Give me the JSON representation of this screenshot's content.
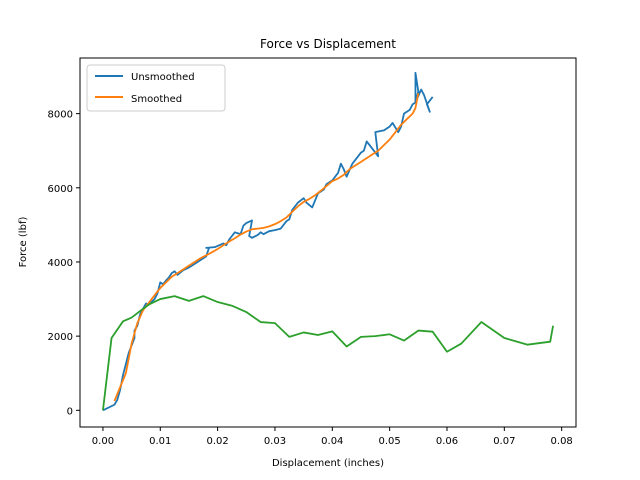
{
  "chart_data": {
    "type": "line",
    "title": "Force vs Displacement",
    "xlabel": "Displacement (inches)",
    "ylabel": "Force (lbf)",
    "xlim": [
      -0.004,
      0.0825
    ],
    "ylim": [
      -450,
      9500
    ],
    "xticks": [
      0.0,
      0.01,
      0.02,
      0.03,
      0.04,
      0.05,
      0.06,
      0.07,
      0.08
    ],
    "xtick_labels": [
      "0.00",
      "0.01",
      "0.02",
      "0.03",
      "0.04",
      "0.05",
      "0.06",
      "0.07",
      "0.08"
    ],
    "yticks": [
      0,
      2000,
      4000,
      6000,
      8000
    ],
    "ytick_labels": [
      "0",
      "2000",
      "4000",
      "6000",
      "8000"
    ],
    "grid": false,
    "legend_position": "top-left",
    "series": [
      {
        "name": "Unsmoothed",
        "color": "#1f77b4",
        "x": [
          0.0,
          0.002,
          0.0025,
          0.003,
          0.0035,
          0.004,
          0.0045,
          0.005,
          0.0055,
          0.0055,
          0.006,
          0.0065,
          0.0075,
          0.008,
          0.009,
          0.0095,
          0.01,
          0.0105,
          0.011,
          0.0115,
          0.012,
          0.0125,
          0.013,
          0.014,
          0.015,
          0.016,
          0.018,
          0.0185,
          0.018,
          0.0195,
          0.021,
          0.0215,
          0.022,
          0.0225,
          0.023,
          0.024,
          0.0245,
          0.025,
          0.026,
          0.0255,
          0.026,
          0.027,
          0.0275,
          0.028,
          0.029,
          0.03,
          0.031,
          0.032,
          0.0325,
          0.033,
          0.034,
          0.035,
          0.0355,
          0.0365,
          0.0375,
          0.0385,
          0.039,
          0.04,
          0.041,
          0.0415,
          0.042,
          0.0425,
          0.0435,
          0.0445,
          0.045,
          0.0455,
          0.046,
          0.047,
          0.048,
          0.0475,
          0.049,
          0.05,
          0.0505,
          0.0515,
          0.052,
          0.0525,
          0.0535,
          0.054,
          0.0545,
          0.0545,
          0.055,
          0.0545,
          0.0555,
          0.056,
          0.057,
          0.0565,
          0.0575
        ],
        "y": [
          0,
          150,
          280,
          550,
          950,
          1250,
          1550,
          1750,
          1950,
          2150,
          2280,
          2600,
          2880,
          2850,
          3000,
          3150,
          3450,
          3400,
          3500,
          3580,
          3700,
          3750,
          3650,
          3780,
          3850,
          3950,
          4150,
          4380,
          4380,
          4400,
          4500,
          4450,
          4600,
          4700,
          4800,
          4750,
          4980,
          5050,
          5120,
          4700,
          4650,
          4730,
          4800,
          4750,
          4830,
          4860,
          4900,
          5100,
          5150,
          5400,
          5600,
          5720,
          5600,
          5470,
          5850,
          5950,
          6100,
          6200,
          6400,
          6650,
          6500,
          6300,
          6650,
          6850,
          6950,
          7000,
          7250,
          7050,
          6850,
          7500,
          7550,
          7650,
          7750,
          7500,
          7650,
          8000,
          8100,
          8250,
          8300,
          9100,
          8600,
          8300,
          8650,
          8500,
          8050,
          8250,
          8450
        ]
      },
      {
        "name": "Smoothed",
        "color": "#ff7f0e",
        "x": [
          0.002,
          0.004,
          0.005,
          0.006,
          0.007,
          0.008,
          0.009,
          0.01,
          0.011,
          0.012,
          0.013,
          0.014,
          0.015,
          0.016,
          0.017,
          0.018,
          0.019,
          0.02,
          0.021,
          0.022,
          0.023,
          0.024,
          0.025,
          0.026,
          0.027,
          0.028,
          0.029,
          0.03,
          0.031,
          0.032,
          0.033,
          0.034,
          0.035,
          0.036,
          0.037,
          0.038,
          0.039,
          0.04,
          0.041,
          0.042,
          0.043,
          0.044,
          0.045,
          0.046,
          0.047,
          0.048,
          0.049,
          0.05,
          0.051,
          0.052,
          0.053,
          0.054,
          0.0545,
          0.055
        ],
        "y": [
          250,
          1000,
          1800,
          2350,
          2700,
          2900,
          3100,
          3300,
          3450,
          3600,
          3700,
          3800,
          3900,
          4000,
          4100,
          4180,
          4260,
          4350,
          4450,
          4550,
          4640,
          4740,
          4820,
          4880,
          4900,
          4920,
          4960,
          5020,
          5100,
          5200,
          5350,
          5500,
          5620,
          5700,
          5800,
          5920,
          6050,
          6180,
          6250,
          6350,
          6500,
          6600,
          6700,
          6800,
          6900,
          7000,
          7150,
          7300,
          7500,
          7700,
          7850,
          8000,
          8150,
          8550
        ]
      },
      {
        "name": "",
        "color": "#2ca02c",
        "x": [
          0.0,
          0.0015,
          0.0035,
          0.005,
          0.0065,
          0.008,
          0.01,
          0.0125,
          0.015,
          0.0175,
          0.02,
          0.0225,
          0.025,
          0.0275,
          0.03,
          0.0325,
          0.035,
          0.0375,
          0.04,
          0.0425,
          0.045,
          0.0475,
          0.05,
          0.0525,
          0.055,
          0.0575,
          0.06,
          0.0625,
          0.066,
          0.07,
          0.074,
          0.078,
          0.0785
        ],
        "y": [
          0,
          1950,
          2400,
          2500,
          2680,
          2850,
          3000,
          3080,
          2950,
          3080,
          2920,
          2820,
          2650,
          2380,
          2350,
          1980,
          2100,
          2030,
          2130,
          1720,
          1980,
          2000,
          2050,
          1880,
          2150,
          2120,
          1580,
          1800,
          2380,
          1950,
          1770,
          1850,
          2280
        ]
      }
    ]
  }
}
